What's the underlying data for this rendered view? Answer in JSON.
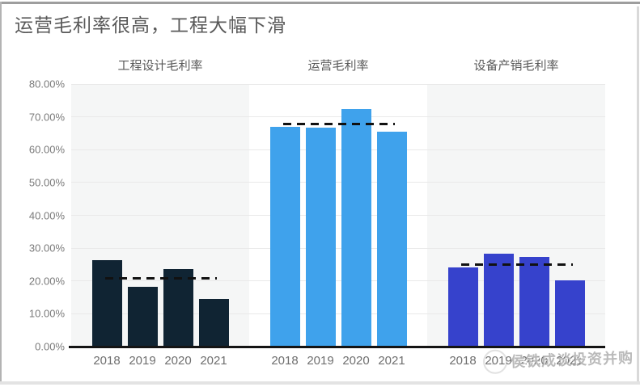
{
  "title": "运营毛利率很高，工程大幅下滑",
  "watermark": "侯铁成谈投资并购",
  "colors": {
    "engineering_bar": "#102433",
    "operations_bar": "#3fa2ec",
    "equipment_bar": "#3642cc",
    "panel_gray": "#f5f6f6",
    "panel_white": "#ffffff",
    "gridline": "#e9e9e9",
    "axis_line": "#141414",
    "avg_line": "#111111",
    "tick_text": "#7a7a7a",
    "title_text": "#595959"
  },
  "chart_data": {
    "type": "bar",
    "title": "运营毛利率很高，工程大幅下滑",
    "categories": [
      "2018",
      "2019",
      "2020",
      "2021"
    ],
    "groups": [
      {
        "label": "工程设计毛利率",
        "color": "#102433",
        "panel_bg": "#f5f6f6",
        "values": [
          26.3,
          18.2,
          23.6,
          14.5
        ],
        "avg_line": 20.7
      },
      {
        "label": "运营毛利率",
        "color": "#3fa2ec",
        "panel_bg": "#ffffff",
        "values": [
          67.0,
          66.7,
          72.4,
          65.4
        ],
        "avg_line": 67.9
      },
      {
        "label": "设备产销毛利率",
        "color": "#3642cc",
        "panel_bg": "#f5f6f6",
        "values": [
          24.1,
          28.3,
          27.3,
          20.2
        ],
        "avg_line": 25.0
      }
    ],
    "ylabel": "",
    "xlabel": "",
    "ylim": [
      0,
      80
    ],
    "ytick_step": 10,
    "ytick_labels": [
      "0.00%",
      "10.00%",
      "20.00%",
      "30.00%",
      "40.00%",
      "50.00%",
      "60.00%",
      "70.00%",
      "80.00%"
    ],
    "grid": true,
    "avg_line_style": "dashed",
    "legend": "none",
    "unit": "percent"
  }
}
